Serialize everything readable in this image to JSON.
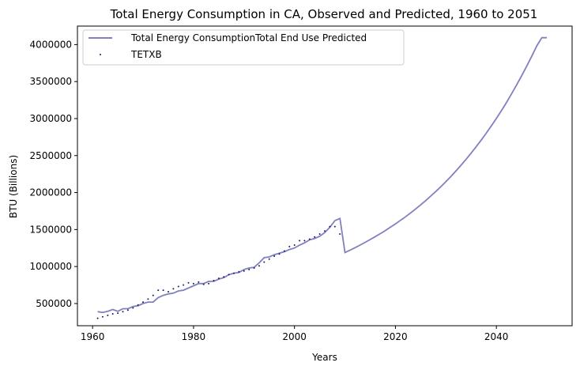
{
  "chart_data": {
    "type": "line",
    "title": "Total Energy Consumption in CA, Observed and Predicted, 1960 to 2051",
    "xlabel": "Years",
    "ylabel": "BTU (Billions)",
    "xlim": [
      1957,
      2055
    ],
    "ylim": [
      200000,
      4250000
    ],
    "xticks": [
      1960,
      1980,
      2000,
      2020,
      2040
    ],
    "yticks": [
      500000,
      1000000,
      1500000,
      2000000,
      2500000,
      3000000,
      3500000,
      4000000
    ],
    "grid": false,
    "legend_position": "top-left",
    "colors": {
      "line": "#8080c0",
      "points": "#1a1a66"
    },
    "series": [
      {
        "name": "Total Energy ConsumptionTotal End Use Predicted",
        "kind": "line",
        "x": [
          1961,
          1962,
          1963,
          1964,
          1965,
          1966,
          1967,
          1968,
          1969,
          1970,
          1971,
          1972,
          1973,
          1974,
          1975,
          1976,
          1977,
          1978,
          1979,
          1980,
          1981,
          1982,
          1983,
          1984,
          1985,
          1986,
          1987,
          1988,
          1989,
          1990,
          1991,
          1992,
          1993,
          1994,
          1995,
          1996,
          1997,
          1998,
          1999,
          2000,
          2001,
          2002,
          2003,
          2004,
          2005,
          2006,
          2007,
          2008,
          2009,
          2010,
          2011,
          2012,
          2013,
          2014,
          2015,
          2016,
          2017,
          2018,
          2019,
          2020,
          2021,
          2022,
          2023,
          2024,
          2025,
          2026,
          2027,
          2028,
          2029,
          2030,
          2031,
          2032,
          2033,
          2034,
          2035,
          2036,
          2037,
          2038,
          2039,
          2040,
          2041,
          2042,
          2043,
          2044,
          2045,
          2046,
          2047,
          2048,
          2049,
          2050
        ],
        "y": [
          390000,
          380000,
          395000,
          420000,
          395000,
          430000,
          430000,
          460000,
          470000,
          500000,
          520000,
          520000,
          580000,
          610000,
          630000,
          640000,
          670000,
          680000,
          710000,
          740000,
          770000,
          770000,
          800000,
          800000,
          830000,
          850000,
          890000,
          910000,
          920000,
          960000,
          980000,
          990000,
          1050000,
          1120000,
          1130000,
          1160000,
          1180000,
          1200000,
          1230000,
          1250000,
          1290000,
          1320000,
          1360000,
          1380000,
          1410000,
          1460000,
          1530000,
          1620000,
          1650000,
          1190000,
          1220000,
          1255000,
          1290000,
          1327000,
          1365000,
          1404000,
          1445000,
          1487000,
          1531000,
          1576000,
          1624000,
          1673000,
          1725000,
          1778000,
          1834000,
          1892000,
          1952000,
          2015000,
          2080000,
          2148000,
          2219000,
          2293000,
          2370000,
          2450000,
          2533000,
          2619000,
          2709000,
          2803000,
          2901000,
          3002000,
          3108000,
          3218000,
          3333000,
          3453000,
          3578000,
          3707000,
          3842000,
          3982000,
          4093000,
          4093000
        ]
      },
      {
        "name": "TETXB",
        "kind": "scatter",
        "x": [
          1961,
          1962,
          1963,
          1964,
          1965,
          1966,
          1967,
          1968,
          1969,
          1970,
          1971,
          1972,
          1973,
          1974,
          1975,
          1976,
          1977,
          1978,
          1979,
          1980,
          1981,
          1982,
          1983,
          1984,
          1985,
          1986,
          1987,
          1988,
          1989,
          1990,
          1991,
          1992,
          1993,
          1994,
          1995,
          1996,
          1997,
          1998,
          1999,
          2000,
          2001,
          2002,
          2003,
          2004,
          2005,
          2006,
          2007,
          2008,
          2009
        ],
        "y": [
          300000,
          320000,
          340000,
          360000,
          370000,
          390000,
          410000,
          440000,
          480000,
          520000,
          560000,
          610000,
          680000,
          680000,
          660000,
          700000,
          730000,
          750000,
          780000,
          770000,
          790000,
          760000,
          770000,
          810000,
          840000,
          860000,
          890000,
          910000,
          930000,
          940000,
          960000,
          980000,
          1010000,
          1060000,
          1100000,
          1140000,
          1170000,
          1210000,
          1270000,
          1290000,
          1350000,
          1350000,
          1370000,
          1400000,
          1440000,
          1480000,
          1540000,
          1540000,
          1440000
        ]
      }
    ]
  }
}
